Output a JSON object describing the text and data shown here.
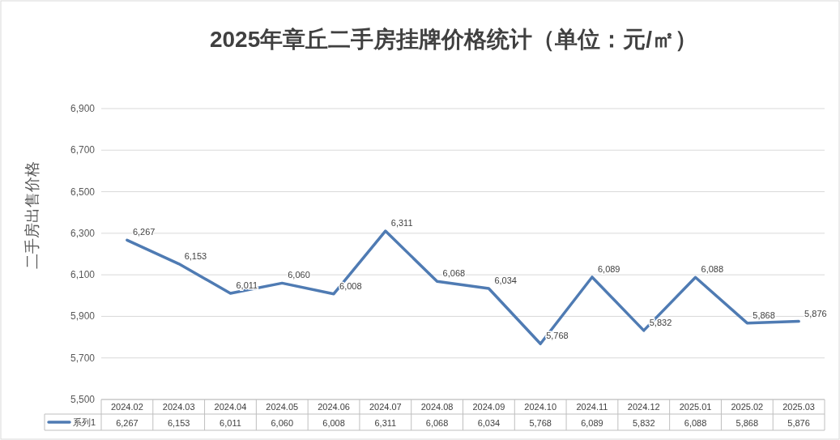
{
  "chart_data": {
    "type": "line",
    "title": "2025年章丘二手房挂牌价格统计（单位：元/㎡）",
    "ylabel": "二手房出售价格",
    "categories": [
      "2024.02",
      "2024.03",
      "2024.04",
      "2024.05",
      "2024.06",
      "2024.07",
      "2024.08",
      "2024.09",
      "2024.10",
      "2024.11",
      "2024.12",
      "2025.01",
      "2025.02",
      "2025.03"
    ],
    "series": [
      {
        "name": "系列1",
        "color": "#4f7bb3",
        "values": [
          6267,
          6153,
          6011,
          6060,
          6008,
          6311,
          6068,
          6034,
          5768,
          6089,
          5832,
          6088,
          5868,
          5876
        ],
        "value_labels": [
          "6,267",
          "6,153",
          "6,011",
          "6,060",
          "6,008",
          "6,311",
          "6,068",
          "6,034",
          "5,768",
          "6,089",
          "5,832",
          "6,088",
          "5,868",
          "5,876"
        ]
      }
    ],
    "ylim": [
      5500,
      6900
    ],
    "yticks": [
      {
        "value": 5500,
        "label": "5,500"
      },
      {
        "value": 5700,
        "label": "5,700"
      },
      {
        "value": 5900,
        "label": "5,900"
      },
      {
        "value": 6100,
        "label": "6,100"
      },
      {
        "value": 6300,
        "label": "6,300"
      },
      {
        "value": 6500,
        "label": "6,500"
      },
      {
        "value": 6700,
        "label": "6,700"
      },
      {
        "value": 6900,
        "label": "6,900"
      }
    ],
    "grid": "y",
    "legend": "bottom",
    "marker": "none",
    "line_style": "solid"
  }
}
